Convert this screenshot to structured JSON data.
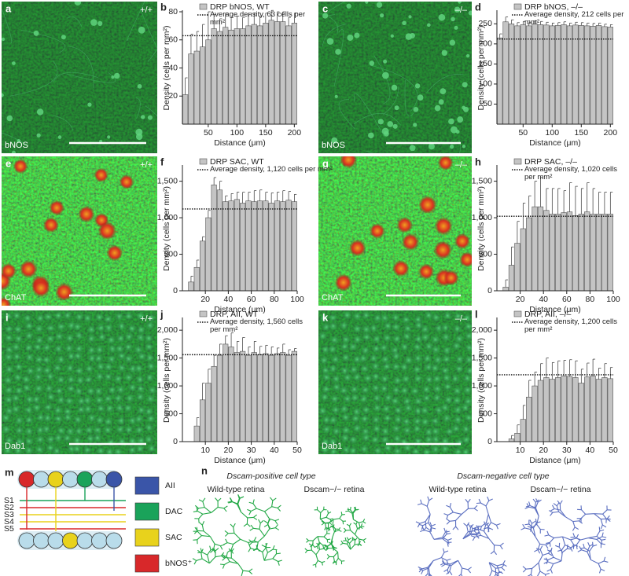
{
  "chart_data": [
    {
      "type": "bar",
      "panel": "b",
      "xlabel": "Distance (μm)",
      "ylabel": "Density (cells per mm²)",
      "x": [
        10,
        20,
        30,
        40,
        50,
        60,
        70,
        80,
        90,
        100,
        110,
        120,
        130,
        140,
        150,
        160,
        170,
        180,
        190,
        200
      ],
      "series": [
        {
          "name": "DRP bNOS, WT",
          "color": "#c4c4c4",
          "values": [
            21,
            50,
            52,
            55,
            60,
            68,
            66,
            69,
            67,
            68,
            68,
            70,
            71,
            70,
            72,
            74,
            73,
            73,
            70,
            72
          ],
          "errors": [
            12,
            14,
            14,
            16,
            20,
            10,
            9,
            10,
            9,
            9,
            8,
            8,
            8,
            7,
            7,
            7,
            7,
            7,
            6,
            7
          ]
        }
      ],
      "reference": {
        "name": "Average density, 63 cells per mm²",
        "value": 63
      },
      "xlim": [
        5,
        205
      ],
      "ylim": [
        0,
        80
      ],
      "xticks": [
        50,
        100,
        150,
        200
      ],
      "yticks": [
        20,
        40,
        60,
        80
      ]
    },
    {
      "type": "bar",
      "panel": "d",
      "xlabel": "Distance (μm)",
      "ylabel": "Density (cells per mm²)",
      "x": [
        10,
        20,
        30,
        40,
        50,
        60,
        70,
        80,
        90,
        100,
        110,
        120,
        130,
        140,
        150,
        160,
        170,
        180,
        190,
        200
      ],
      "series": [
        {
          "name": "DRP bNOS, –/–",
          "color": "#c4c4c4",
          "values": [
            215,
            255,
            250,
            245,
            248,
            245,
            250,
            248,
            247,
            245,
            246,
            248,
            245,
            247,
            246,
            245,
            244,
            246,
            243,
            242
          ],
          "errors": [
            10,
            12,
            10,
            8,
            8,
            8,
            8,
            8,
            7,
            7,
            7,
            7,
            7,
            7,
            7,
            7,
            7,
            6,
            6,
            6
          ]
        }
      ],
      "reference": {
        "name": "Average density, 212 cells per mm²",
        "value": 212
      },
      "xlim": [
        5,
        205
      ],
      "ylim": [
        0,
        280
      ],
      "xticks": [
        50,
        100,
        150,
        200
      ],
      "yticks": [
        50,
        100,
        150,
        200,
        250
      ]
    },
    {
      "type": "bar",
      "panel": "f",
      "xlabel": "Distance (μm)",
      "ylabel": "Density (cells per mm²)",
      "x": [
        7.5,
        12.5,
        17.5,
        22.5,
        27.5,
        32.5,
        37.5,
        42.5,
        47.5,
        52.5,
        57.5,
        62.5,
        67.5,
        72.5,
        77.5,
        82.5,
        87.5,
        92.5,
        97.5
      ],
      "series": [
        {
          "name": "DRP SAC, WT",
          "color": "#c4c4c4",
          "values": [
            120,
            320,
            680,
            1000,
            1450,
            1380,
            1220,
            1230,
            1250,
            1200,
            1230,
            1220,
            1230,
            1230,
            1200,
            1230,
            1220,
            1240,
            1220
          ],
          "errors": [
            80,
            100,
            60,
            100,
            100,
            120,
            80,
            100,
            100,
            150,
            120,
            150,
            150,
            120,
            140,
            120,
            150,
            120,
            100
          ]
        }
      ],
      "reference": {
        "name": "Average density, 1,120 cells per mm²",
        "value": 1120
      },
      "xlim": [
        0,
        100
      ],
      "ylim": [
        0,
        1700
      ],
      "xticks": [
        20,
        40,
        60,
        80,
        100
      ],
      "yticks": [
        0,
        500,
        {
          "value": 1000,
          "label": "1,000"
        },
        {
          "value": 1500,
          "label": "1,500"
        }
      ]
    },
    {
      "type": "bar",
      "panel": "h",
      "xlabel": "Distance (μm)",
      "ylabel": "Density (cells per mm²)",
      "x": [
        7.5,
        12.5,
        17.5,
        22.5,
        27.5,
        32.5,
        37.5,
        42.5,
        47.5,
        52.5,
        57.5,
        62.5,
        67.5,
        72.5,
        77.5,
        82.5,
        87.5,
        92.5,
        97.5
      ],
      "series": [
        {
          "name": "DRP SAC, –/–",
          "color": "#c4c4c4",
          "values": [
            50,
            350,
            650,
            850,
            1000,
            1150,
            1150,
            1100,
            1050,
            1050,
            1070,
            1080,
            1030,
            1050,
            1080,
            1050,
            1050,
            1050,
            1050
          ],
          "errors": [
            100,
            250,
            300,
            350,
            300,
            350,
            400,
            300,
            350,
            350,
            300,
            400,
            400,
            350,
            400,
            350,
            300,
            300,
            300
          ]
        }
      ],
      "reference": {
        "name": "Average density, 1,020 cells per mm²",
        "value": 1020
      },
      "xlim": [
        0,
        100
      ],
      "ylim": [
        0,
        1700
      ],
      "xticks": [
        20,
        40,
        60,
        80,
        100
      ],
      "yticks": [
        0,
        500,
        {
          "value": 1000,
          "label": "1,000"
        },
        {
          "value": 1500,
          "label": "1,500"
        }
      ]
    },
    {
      "type": "bar",
      "panel": "j",
      "xlabel": "Distance (μm)",
      "ylabel": "Density (cells per mm²)",
      "x": [
        6.25,
        8.75,
        11.25,
        13.75,
        16.25,
        18.75,
        21.25,
        23.75,
        26.25,
        28.75,
        31.25,
        33.75,
        36.25,
        38.75,
        41.25,
        43.75,
        46.25,
        48.75
      ],
      "series": [
        {
          "name": "DRP, AII, WT",
          "color": "#c4c4c4",
          "values": [
            280,
            750,
            1050,
            1350,
            1550,
            1750,
            1700,
            1600,
            1620,
            1550,
            1600,
            1560,
            1580,
            1550,
            1580,
            1600,
            1550,
            1620
          ],
          "errors": [
            150,
            300,
            250,
            200,
            200,
            150,
            250,
            200,
            250,
            150,
            200,
            150,
            150,
            150,
            100,
            150,
            100,
            50
          ]
        }
      ],
      "reference": {
        "name": "Average density, 1,560 cells per mm²",
        "value": 1560
      },
      "xlim": [
        0,
        50
      ],
      "ylim": [
        0,
        2200
      ],
      "xticks": [
        10,
        20,
        30,
        40,
        50
      ],
      "yticks": [
        0,
        500,
        {
          "value": 1000,
          "label": "1,000"
        },
        {
          "value": 1500,
          "label": "1,500"
        },
        {
          "value": 2000,
          "label": "2,000"
        }
      ]
    },
    {
      "type": "bar",
      "panel": "l",
      "xlabel": "Distance (μm)",
      "ylabel": "Density (cells per mm²)",
      "x": [
        6.25,
        8.75,
        11.25,
        13.75,
        16.25,
        18.75,
        21.25,
        23.75,
        26.25,
        28.75,
        31.25,
        33.75,
        36.25,
        38.75,
        41.25,
        43.75,
        46.25,
        48.75
      ],
      "series": [
        {
          "name": "DRP, AII, –/–",
          "color": "#c4c4c4",
          "values": [
            50,
            150,
            400,
            800,
            1000,
            1100,
            1150,
            1120,
            1150,
            1180,
            1170,
            1150,
            1050,
            1160,
            1180,
            1120,
            1150,
            1130
          ],
          "errors": [
            60,
            150,
            250,
            300,
            250,
            300,
            350,
            300,
            300,
            280,
            300,
            300,
            250,
            250,
            300,
            200,
            250,
            200
          ]
        }
      ],
      "reference": {
        "name": "Average density, 1,200 cells per mm²",
        "value": 1200
      },
      "xlim": [
        0,
        50
      ],
      "ylim": [
        0,
        2200
      ],
      "xticks": [
        10,
        20,
        30,
        40,
        50
      ],
      "yticks": [
        0,
        500,
        {
          "value": 1000,
          "label": "1,000"
        },
        {
          "value": 1500,
          "label": "1,500"
        },
        {
          "value": 2000,
          "label": "2,000"
        }
      ]
    }
  ],
  "images": [
    {
      "panel": "a",
      "stain": "bNOS",
      "genotype": "+/+"
    },
    {
      "panel": "c",
      "stain": "bNOS",
      "genotype": "–/–"
    },
    {
      "panel": "e",
      "stain": "ChAT",
      "genotype": "+/+"
    },
    {
      "panel": "g",
      "stain": "ChAT",
      "genotype": "–/–"
    },
    {
      "panel": "i",
      "stain": "Dab1",
      "genotype": "+/+"
    },
    {
      "panel": "k",
      "stain": "Dab1",
      "genotype": "–/–"
    }
  ],
  "schematic": {
    "panel": "m",
    "strata": [
      "S1",
      "S2",
      "S3",
      "S4",
      "S5"
    ],
    "legend": [
      "AII",
      "DAC",
      "SAC",
      "bNOS⁺"
    ]
  },
  "morphology": {
    "panel": "n",
    "groups": [
      {
        "title": "Dscam-positive cell type",
        "retinas": [
          "Wild-type retina",
          "Dscam−/− retina"
        ]
      },
      {
        "title": "Dscam-negative cell type",
        "retinas": [
          "Wild-type retina",
          "Dscam−/− retina"
        ]
      }
    ]
  }
}
